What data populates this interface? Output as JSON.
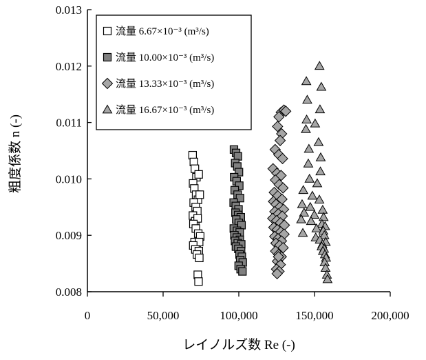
{
  "chart_data": {
    "type": "scatter",
    "xlabel": "レイノルズ数 Re (-)",
    "ylabel": "粗度係数 n (-)",
    "xlim": [
      0,
      200000
    ],
    "ylim": [
      0.008,
      0.013
    ],
    "x_ticks": [
      0,
      50000,
      100000,
      150000,
      200000
    ],
    "x_tick_labels": [
      "0",
      "50,000",
      "100,000",
      "150,000",
      "200,000"
    ],
    "y_ticks": [
      0.008,
      0.009,
      0.01,
      0.011,
      0.012,
      0.013
    ],
    "y_tick_labels": [
      "0.008",
      "0.009",
      "0.010",
      "0.011",
      "0.012",
      "0.013"
    ],
    "grid": false,
    "legend_position": "top-left",
    "series": [
      {
        "name": "流量 6.67×10⁻³ (m³/s)",
        "marker": "square-open",
        "color": "#ffffff",
        "x": [
          69500,
          70300,
          71000,
          72000,
          73500,
          69800,
          70600,
          71800,
          73000,
          74200,
          70200,
          71500,
          72600,
          69700,
          71200,
          72800,
          70000,
          71600,
          73200,
          74500,
          70800,
          72200,
          73800,
          69900,
          71300,
          73600,
          72400,
          73900,
          72900,
          73400
        ],
        "y": [
          0.01042,
          0.0103,
          0.01018,
          0.01003,
          0.01008,
          0.00992,
          0.00983,
          0.00972,
          0.00963,
          0.00972,
          0.00958,
          0.0095,
          0.00943,
          0.00935,
          0.00925,
          0.0093,
          0.0092,
          0.00912,
          0.00903,
          0.00898,
          0.00888,
          0.0088,
          0.00888,
          0.00882,
          0.00875,
          0.00872,
          0.00866,
          0.0086,
          0.0083,
          0.00818
        ]
      },
      {
        "name": "流量 10.00×10⁻³ (m³/s)",
        "marker": "square-filled",
        "color": "#808080",
        "x": [
          96800,
          98200,
          99400,
          97600,
          99000,
          100100,
          96900,
          98600,
          100300,
          97300,
          99200,
          100800,
          96600,
          98000,
          99800,
          97800,
          99600,
          101300,
          98300,
          100000,
          101800,
          96700,
          98800,
          100600,
          97100,
          98700,
          100700,
          97500,
          99300,
          101600,
          98100,
          99700,
          101500,
          100500,
          102000,
          100900,
          102600,
          99900,
          101200,
          102400
        ],
        "y": [
          0.01052,
          0.01046,
          0.0104,
          0.01028,
          0.01022,
          0.01012,
          0.01003,
          0.00996,
          0.00988,
          0.0098,
          0.00972,
          0.00966,
          0.00958,
          0.00952,
          0.00946,
          0.0094,
          0.00936,
          0.00932,
          0.00928,
          0.00922,
          0.00918,
          0.00912,
          0.00908,
          0.00905,
          0.009,
          0.00896,
          0.00892,
          0.0089,
          0.00886,
          0.00884,
          0.0088,
          0.00876,
          0.00872,
          0.00866,
          0.00862,
          0.00856,
          0.00852,
          0.00846,
          0.0084,
          0.00836
        ]
      },
      {
        "name": "流量 13.33×10⁻³ (m³/s)",
        "marker": "diamond",
        "color": "#a6a6a6",
        "x": [
          128000,
          129800,
          131000,
          126500,
          125600,
          128300,
          127300,
          124000,
          126400,
          128900,
          122600,
          125200,
          127900,
          124200,
          126700,
          129200,
          123400,
          125800,
          128500,
          122900,
          124600,
          127100,
          129600,
          123800,
          126100,
          128700,
          122400,
          125000,
          127500,
          130100,
          123100,
          125400,
          127700,
          129900,
          123700,
          125900,
          128200,
          124500,
          126900,
          129300,
          124300,
          126300,
          128100,
          125500,
          127400,
          124900,
          126600,
          125300,
          126200
        ],
        "y": [
          0.01118,
          0.01122,
          0.0112,
          0.0111,
          0.01093,
          0.0108,
          0.01068,
          0.01052,
          0.01043,
          0.01036,
          0.01018,
          0.0101,
          0.01006,
          0.00998,
          0.0099,
          0.00984,
          0.00976,
          0.0097,
          0.00964,
          0.0096,
          0.00955,
          0.0095,
          0.00946,
          0.00942,
          0.00938,
          0.00934,
          0.0093,
          0.00926,
          0.00922,
          0.00918,
          0.00914,
          0.0091,
          0.00906,
          0.00902,
          0.00898,
          0.00894,
          0.0089,
          0.00886,
          0.00882,
          0.00878,
          0.00872,
          0.00866,
          0.00862,
          0.00854,
          0.00848,
          0.0084,
          0.00836,
          0.00832,
          0.00862
        ]
      },
      {
        "name": "流量 16.67×10⁻³ (m³/s)",
        "marker": "triangle",
        "color": "#a6a6a6",
        "x": [
          153300,
          144600,
          154500,
          145200,
          153600,
          144800,
          150400,
          144300,
          152700,
          146300,
          154100,
          145900,
          153900,
          146700,
          151800,
          142600,
          148600,
          153200,
          141800,
          147200,
          155400,
          143100,
          149900,
          156000,
          141200,
          147700,
          154900,
          157000,
          151300,
          155800,
          142300,
          156500,
          150800,
          153500,
          157400,
          155200,
          154700,
          156300,
          155600,
          156900,
          157600,
          156700,
          157300,
          158200,
          158600
        ],
        "y": [
          0.012,
          0.01173,
          0.01163,
          0.0114,
          0.01123,
          0.01105,
          0.01098,
          0.01088,
          0.01065,
          0.01053,
          0.01038,
          0.01027,
          0.01013,
          0.01,
          0.00992,
          0.0098,
          0.0097,
          0.00963,
          0.00955,
          0.0095,
          0.00945,
          0.0094,
          0.00936,
          0.00932,
          0.00928,
          0.00925,
          0.0092,
          0.00916,
          0.00912,
          0.00908,
          0.00904,
          0.009,
          0.00896,
          0.00892,
          0.00888,
          0.00884,
          0.0088,
          0.00876,
          0.00872,
          0.00866,
          0.0086,
          0.00852,
          0.00842,
          0.0083,
          0.00822
        ]
      }
    ]
  }
}
